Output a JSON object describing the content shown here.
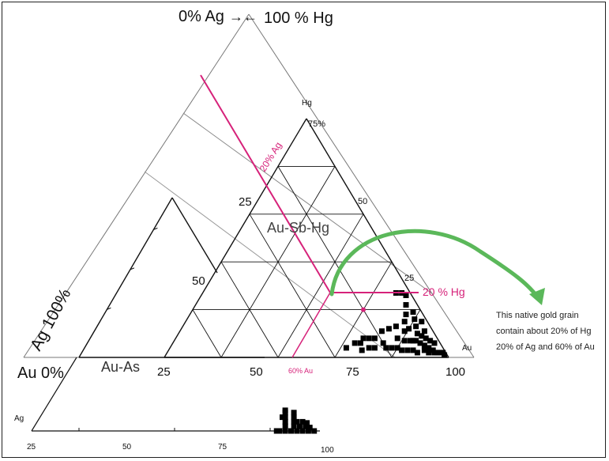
{
  "labels": {
    "top_left": "0% Ag",
    "top_arrow": "→←",
    "top_right": "100 % Hg",
    "hg_vertex": "Hg",
    "hg_75": "75%",
    "ag_100": "Ag 100%",
    "au_0": "Au 0%",
    "au_as": "Au-As",
    "au_sb_hg": "Au-Sb-Hg",
    "ag_vertex": "Ag",
    "au_vertex": "Au",
    "line_20_ag": "20% Ag",
    "line_20_hg": "20 % Hg",
    "line_60_au": "60% Au",
    "annotation": [
      "This native gold grain",
      "contain about 20% of Hg",
      "20% of Ag and 60% of Au"
    ]
  },
  "ticks": {
    "inner_left_25": "25",
    "inner_left_50": "50",
    "inner_right_50": "50",
    "inner_right_25": "25",
    "inner_base_25": "25",
    "inner_base_50": "50",
    "inner_base_75": "75",
    "inner_base_100": "100",
    "outer_base_25": "25",
    "outer_base_50": "50",
    "outer_base_75": "75",
    "outer_base_100": "100"
  },
  "colors": {
    "line": "#111111",
    "magenta": "#d6227a",
    "green_arrow": "#5bb85a",
    "points": "#000000"
  },
  "chart_data": {
    "type": "scatter",
    "title": "",
    "axes": [
      "Au",
      "Ag",
      "Hg"
    ],
    "scale_ticks": [
      25,
      50,
      75,
      100
    ],
    "highlighted_point": {
      "Au": 60,
      "Ag": 20,
      "Hg": 20
    },
    "series": [
      {
        "values": [
          {
            "Au": 82,
            "Ag": 5,
            "Hg": 13
          },
          {
            "Au": 80,
            "Ag": 4,
            "Hg": 16
          },
          {
            "Au": 78,
            "Ag": 3,
            "Hg": 19
          },
          {
            "Au": 84,
            "Ag": 6,
            "Hg": 10
          },
          {
            "Au": 86,
            "Ag": 5,
            "Hg": 9
          },
          {
            "Au": 88,
            "Ag": 4,
            "Hg": 8
          },
          {
            "Au": 90,
            "Ag": 3,
            "Hg": 7
          },
          {
            "Au": 92,
            "Ag": 2,
            "Hg": 6
          },
          {
            "Au": 85,
            "Ag": 8,
            "Hg": 7
          },
          {
            "Au": 87,
            "Ag": 7,
            "Hg": 6
          },
          {
            "Au": 89,
            "Ag": 6,
            "Hg": 5
          },
          {
            "Au": 91,
            "Ag": 5,
            "Hg": 4
          },
          {
            "Au": 93,
            "Ag": 4,
            "Hg": 3
          },
          {
            "Au": 83,
            "Ag": 10,
            "Hg": 7
          },
          {
            "Au": 81,
            "Ag": 12,
            "Hg": 7
          },
          {
            "Au": 79,
            "Ag": 10,
            "Hg": 11
          },
          {
            "Au": 77,
            "Ag": 8,
            "Hg": 15
          },
          {
            "Au": 75,
            "Ag": 12,
            "Hg": 13
          },
          {
            "Au": 73,
            "Ag": 15,
            "Hg": 12
          },
          {
            "Au": 71,
            "Ag": 18,
            "Hg": 11
          },
          {
            "Au": 70,
            "Ag": 22,
            "Hg": 8
          },
          {
            "Au": 72,
            "Ag": 24,
            "Hg": 4
          },
          {
            "Au": 76,
            "Ag": 20,
            "Hg": 4
          },
          {
            "Au": 80,
            "Ag": 16,
            "Hg": 4
          },
          {
            "Au": 84,
            "Ag": 13,
            "Hg": 3
          },
          {
            "Au": 88,
            "Ag": 10,
            "Hg": 2
          },
          {
            "Au": 94,
            "Ag": 4,
            "Hg": 2
          },
          {
            "Au": 96,
            "Ag": 2,
            "Hg": 2
          },
          {
            "Au": 86,
            "Ag": 11,
            "Hg": 3
          },
          {
            "Au": 82,
            "Ag": 15,
            "Hg": 3
          },
          {
            "Au": 78,
            "Ag": 18,
            "Hg": 4
          },
          {
            "Au": 74,
            "Ag": 20,
            "Hg": 6
          },
          {
            "Au": 68,
            "Ag": 24,
            "Hg": 8
          },
          {
            "Au": 66,
            "Ag": 26,
            "Hg": 8
          },
          {
            "Au": 70,
            "Ag": 26,
            "Hg": 4
          },
          {
            "Au": 78,
            "Ag": 14,
            "Hg": 8
          },
          {
            "Au": 76,
            "Ag": 6,
            "Hg": 18
          },
          {
            "Au": 74,
            "Ag": 4,
            "Hg": 22
          },
          {
            "Au": 72,
            "Ag": 2,
            "Hg": 26
          },
          {
            "Au": 70,
            "Ag": 3,
            "Hg": 27
          },
          {
            "Au": 68,
            "Ag": 5,
            "Hg": 27
          },
          {
            "Au": 80,
            "Ag": 8,
            "Hg": 12
          },
          {
            "Au": 84,
            "Ag": 9,
            "Hg": 7
          },
          {
            "Au": 86,
            "Ag": 3,
            "Hg": 11
          },
          {
            "Au": 90,
            "Ag": 7,
            "Hg": 3
          },
          {
            "Au": 92,
            "Ag": 6,
            "Hg": 2
          },
          {
            "Au": 95,
            "Ag": 3,
            "Hg": 2
          },
          {
            "Au": 97,
            "Ag": 1,
            "Hg": 2
          },
          {
            "Au": 98,
            "Ag": 1,
            "Hg": 1
          },
          {
            "Au": 66,
            "Ag": 28,
            "Hg": 6
          },
          {
            "Au": 64,
            "Ag": 30,
            "Hg": 6
          },
          {
            "Au": 68,
            "Ag": 29,
            "Hg": 3
          },
          {
            "Au": 62,
            "Ag": 34,
            "Hg": 4
          },
          {
            "Au": 83,
            "Ag": 2,
            "Hg": 15
          }
        ]
      },
      {
        "values": [
          {
            "Au": 85,
            "Ag": 15,
            "As": 0
          },
          {
            "Au": 88,
            "Ag": 12,
            "As": 0
          },
          {
            "Au": 90,
            "Ag": 10,
            "As": 0
          },
          {
            "Au": 92,
            "Ag": 8,
            "As": 0
          },
          {
            "Au": 94,
            "Ag": 6,
            "As": 0
          },
          {
            "Au": 96,
            "Ag": 4,
            "As": 0
          },
          {
            "Au": 98,
            "Ag": 2,
            "As": 0
          },
          {
            "Au": 86,
            "Ag": 10,
            "As": 4
          },
          {
            "Au": 89,
            "Ag": 7,
            "As": 4
          },
          {
            "Au": 91,
            "Ag": 5,
            "As": 4
          },
          {
            "Au": 93,
            "Ag": 3,
            "As": 4
          },
          {
            "Au": 84,
            "Ag": 8,
            "As": 8
          },
          {
            "Au": 87,
            "Ag": 5,
            "As": 8
          },
          {
            "Au": 90,
            "Ag": 2,
            "As": 8
          },
          {
            "Au": 82,
            "Ag": 6,
            "As": 12
          },
          {
            "Au": 85,
            "Ag": 3,
            "As": 12
          },
          {
            "Au": 80,
            "Ag": 4,
            "As": 16
          },
          {
            "Au": 83,
            "Ag": 1,
            "As": 16
          },
          {
            "Au": 86,
            "Ag": 14,
            "As": 0
          },
          {
            "Au": 95,
            "Ag": 2,
            "As": 3
          },
          {
            "Au": 88,
            "Ag": 4,
            "As": 8
          },
          {
            "Au": 81,
            "Ag": 7,
            "As": 12
          },
          {
            "Au": 79,
            "Ag": 3,
            "As": 18
          },
          {
            "Au": 92,
            "Ag": 1,
            "As": 7
          }
        ]
      }
    ]
  }
}
